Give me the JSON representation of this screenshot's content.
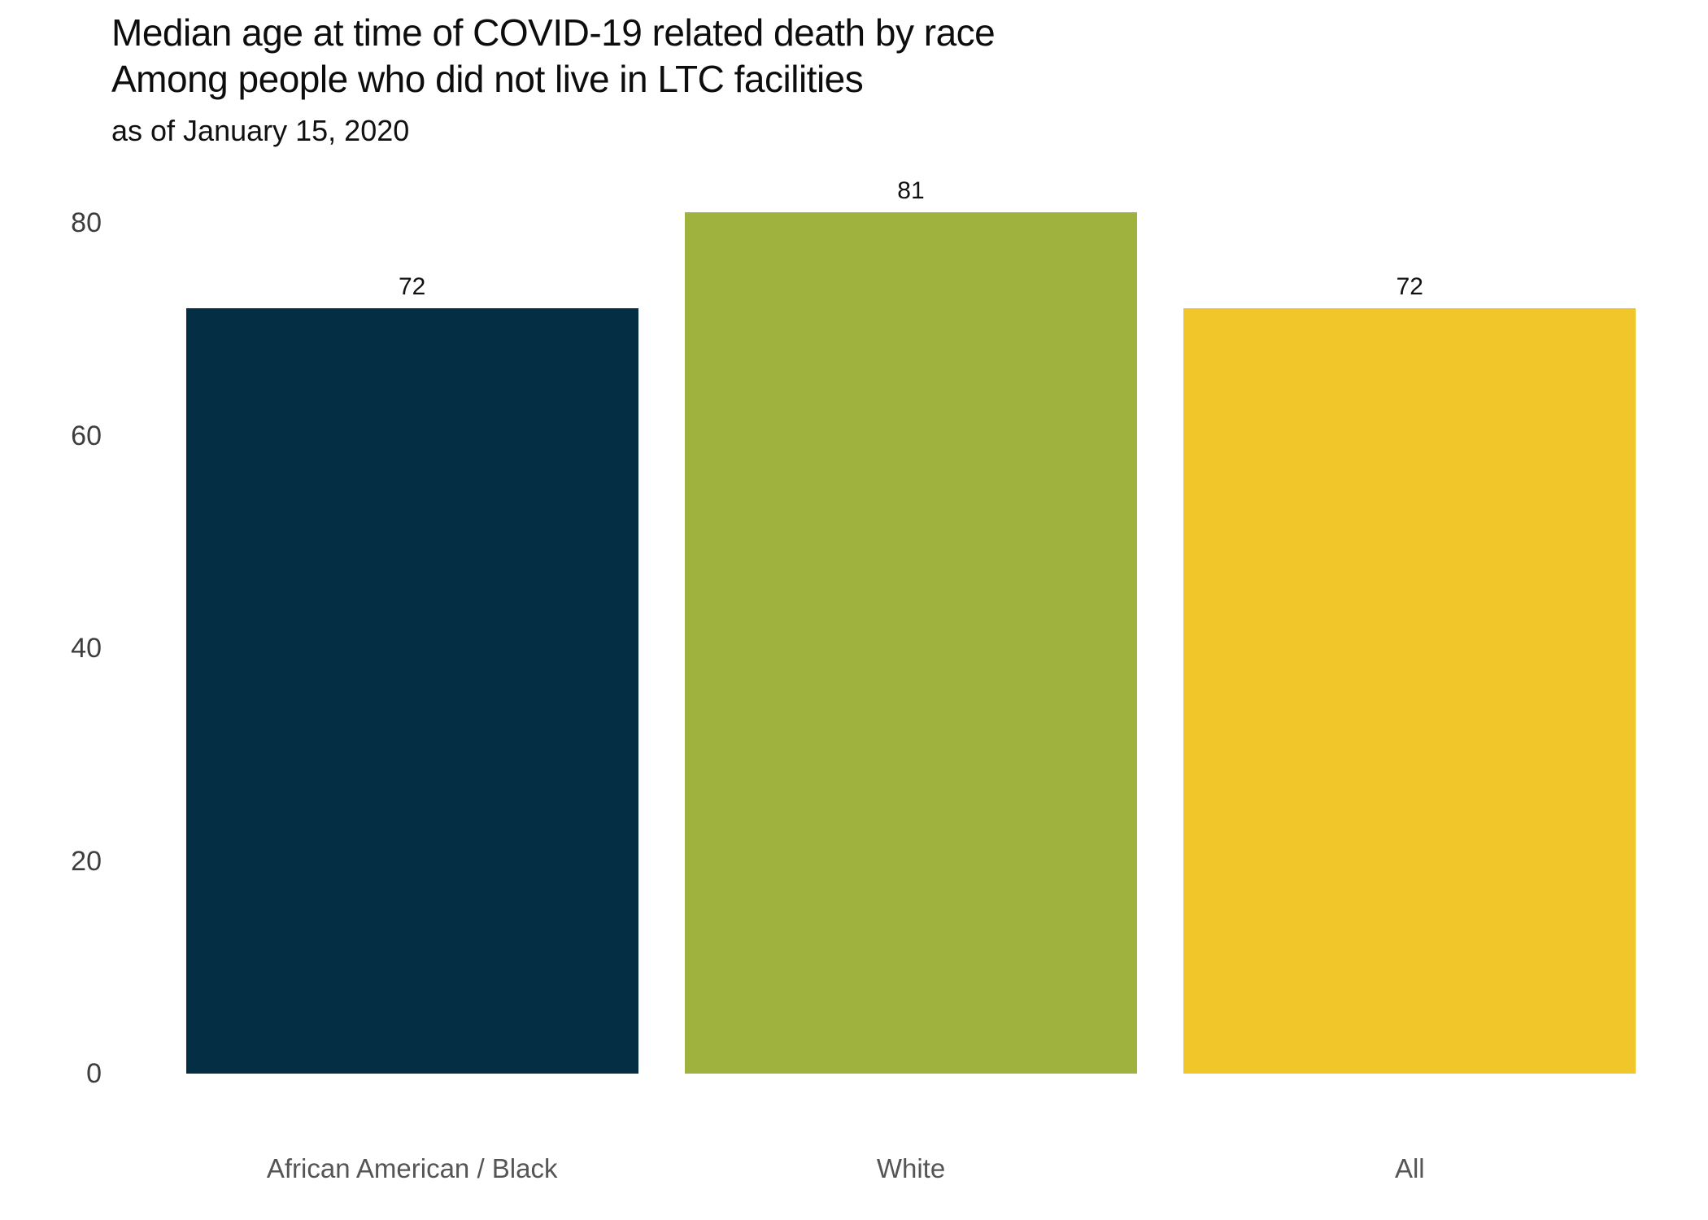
{
  "header": {
    "title_lines": [
      "Median age at time of COVID-19 related death by race",
      "Among people who did not live in LTC facilities"
    ],
    "subtitle": "as of January 15, 2020"
  },
  "chart_data": {
    "type": "bar",
    "title": "Median age at time of COVID-19 related death by race Among people who did not live in LTC facilities",
    "subtitle": "as of January 15, 2020",
    "categories": [
      "African American / Black",
      "White",
      "All"
    ],
    "values": [
      72,
      81,
      72
    ],
    "value_labels": [
      "72",
      "81",
      "72"
    ],
    "bar_colors": [
      "#032e44",
      "#9fb23e",
      "#f0c62b"
    ],
    "xlabel": "",
    "ylabel": "",
    "ylim": [
      0,
      80
    ],
    "yticks": [
      0,
      20,
      40,
      60,
      80
    ],
    "grid": false,
    "legend": "none",
    "background": "#ffffff"
  }
}
